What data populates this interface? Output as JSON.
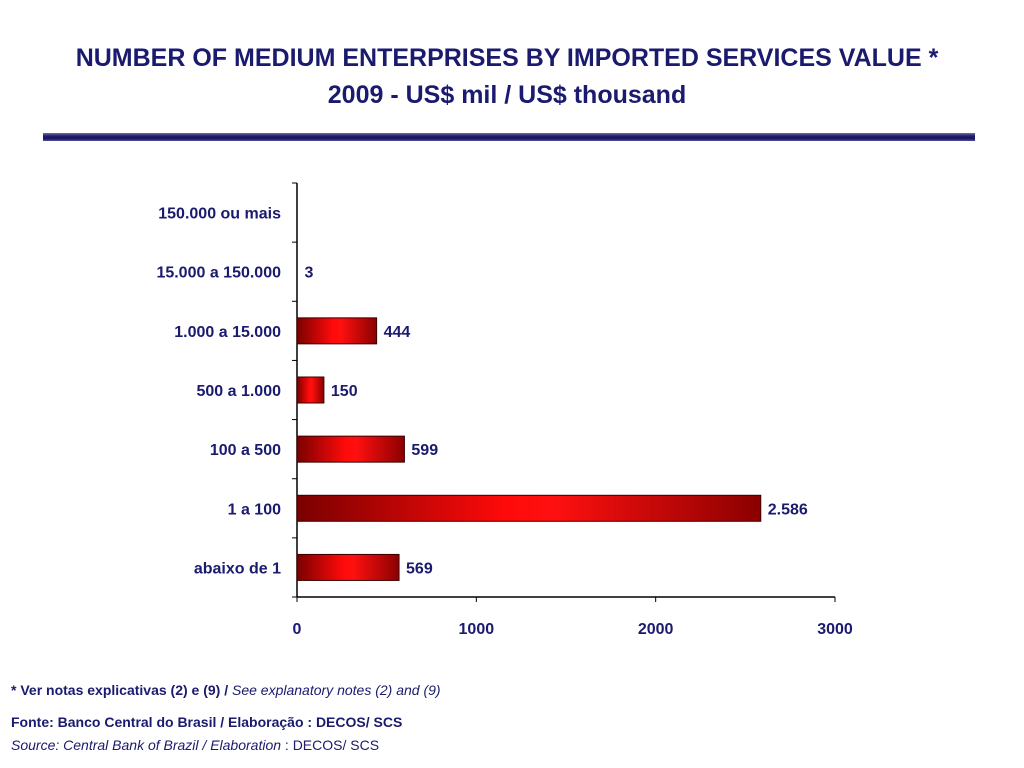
{
  "header": {
    "title_line1": "NUMBER OF MEDIUM ENTERPRISES BY IMPORTED SERVICES VALUE *",
    "title_line2": "2009 - US$ mil / US$ thousand"
  },
  "colors": {
    "bar_dark": "#8b0000",
    "bar_bright": "#ff0a0a",
    "text": "#1a1a6e",
    "rule": "#1e1e6b"
  },
  "chart_data": {
    "type": "bar",
    "orientation": "horizontal",
    "categories": [
      "150.000 ou mais",
      "15.000 a 150.000",
      "1.000 a 15.000",
      "500 a 1.000",
      "100 a 500",
      "1 a 100",
      "abaixo de 1"
    ],
    "values": [
      null,
      3,
      444,
      150,
      599,
      2586,
      569
    ],
    "data_labels": [
      "",
      "3",
      "444",
      "150",
      "599",
      "2.586",
      "569"
    ],
    "x_ticks": [
      "0",
      "1000",
      "2000",
      "3000"
    ],
    "xlim": [
      0,
      3000
    ],
    "grid": false,
    "legend": "none"
  },
  "footer": {
    "note_bold": "* Ver notas explicativas (2) e (9) / ",
    "note_italic": "See explanatory notes (2) and (9)",
    "source_pt": "Fonte: Banco Central do Brasil /  Elaboração : DECOS/ SCS",
    "source_en_italic": "Source: Central Bank of Brazil / Elaboration",
    "source_en_plain": " : DECOS/ SCS"
  }
}
